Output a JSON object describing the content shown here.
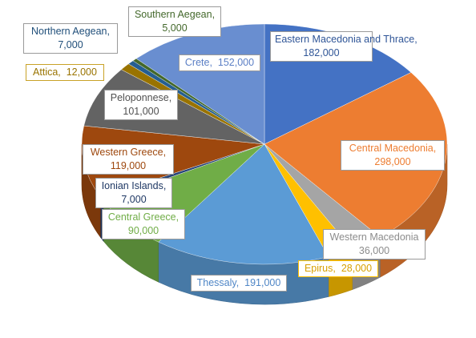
{
  "chart_data": {
    "type": "pie",
    "title": "",
    "legend": "none",
    "slices": [
      {
        "label": "Eastern Macedonia and Thrace",
        "value": 182000,
        "value_text": "182,000",
        "color": "#4472C4"
      },
      {
        "label": "Central Macedonia",
        "value": 298000,
        "value_text": "298,000",
        "color": "#ED7D31"
      },
      {
        "label": "Western Macedonia",
        "value": 36000,
        "value_text": "36,000",
        "color": "#A5A5A5"
      },
      {
        "label": "Epirus",
        "value": 28000,
        "value_text": "28,000",
        "color": "#FFC000"
      },
      {
        "label": "Thessaly",
        "value": 191000,
        "value_text": "191,000",
        "color": "#5B9BD5"
      },
      {
        "label": "Central Greece",
        "value": 90000,
        "value_text": "90,000",
        "color": "#70AD47"
      },
      {
        "label": "Ionian Islands",
        "value": 7000,
        "value_text": "7,000",
        "color": "#264478"
      },
      {
        "label": "Western Greece",
        "value": 119000,
        "value_text": "119,000",
        "color": "#9E480E"
      },
      {
        "label": "Peloponnese",
        "value": 101000,
        "value_text": "101,000",
        "color": "#636363"
      },
      {
        "label": "Attica",
        "value": 12000,
        "value_text": "12,000",
        "color": "#997300"
      },
      {
        "label": "Northern Aegean",
        "value": 7000,
        "value_text": "7,000",
        "color": "#255E91"
      },
      {
        "label": "Southern Aegean",
        "value": 5000,
        "value_text": "5,000",
        "color": "#43682B"
      },
      {
        "label": "Crete",
        "value": 152000,
        "value_text": "152,000",
        "color": "#698ED0"
      }
    ]
  }
}
